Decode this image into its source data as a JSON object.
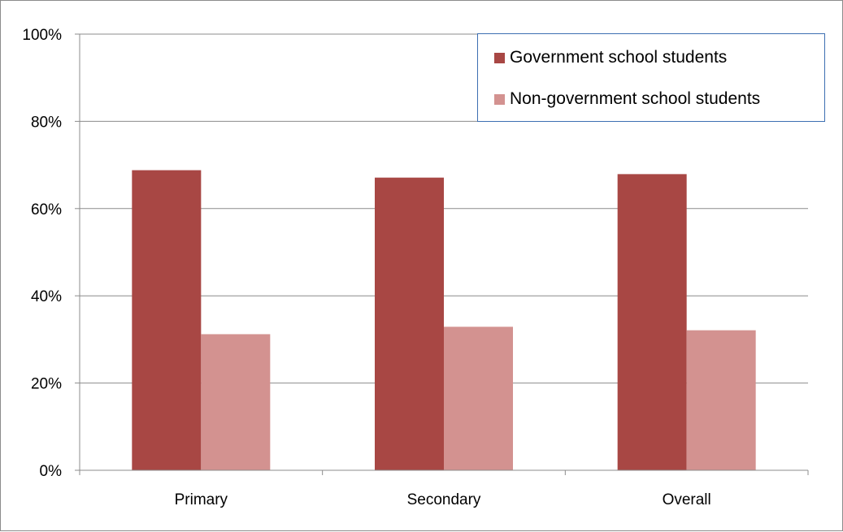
{
  "chart_data": {
    "type": "bar",
    "categories": [
      "Primary",
      "Secondary",
      "Overall"
    ],
    "series": [
      {
        "name": "Government school students",
        "values": [
          68.8,
          67.1,
          67.9
        ],
        "color": "#a84744"
      },
      {
        "name": "Non-government school students",
        "values": [
          31.2,
          32.9,
          32.1
        ],
        "color": "#d39290"
      }
    ],
    "y_ticks": [
      "0%",
      "20%",
      "40%",
      "60%",
      "80%",
      "100%"
    ],
    "ylim": [
      0,
      100
    ],
    "grid": true,
    "legend_position": "top-right"
  }
}
